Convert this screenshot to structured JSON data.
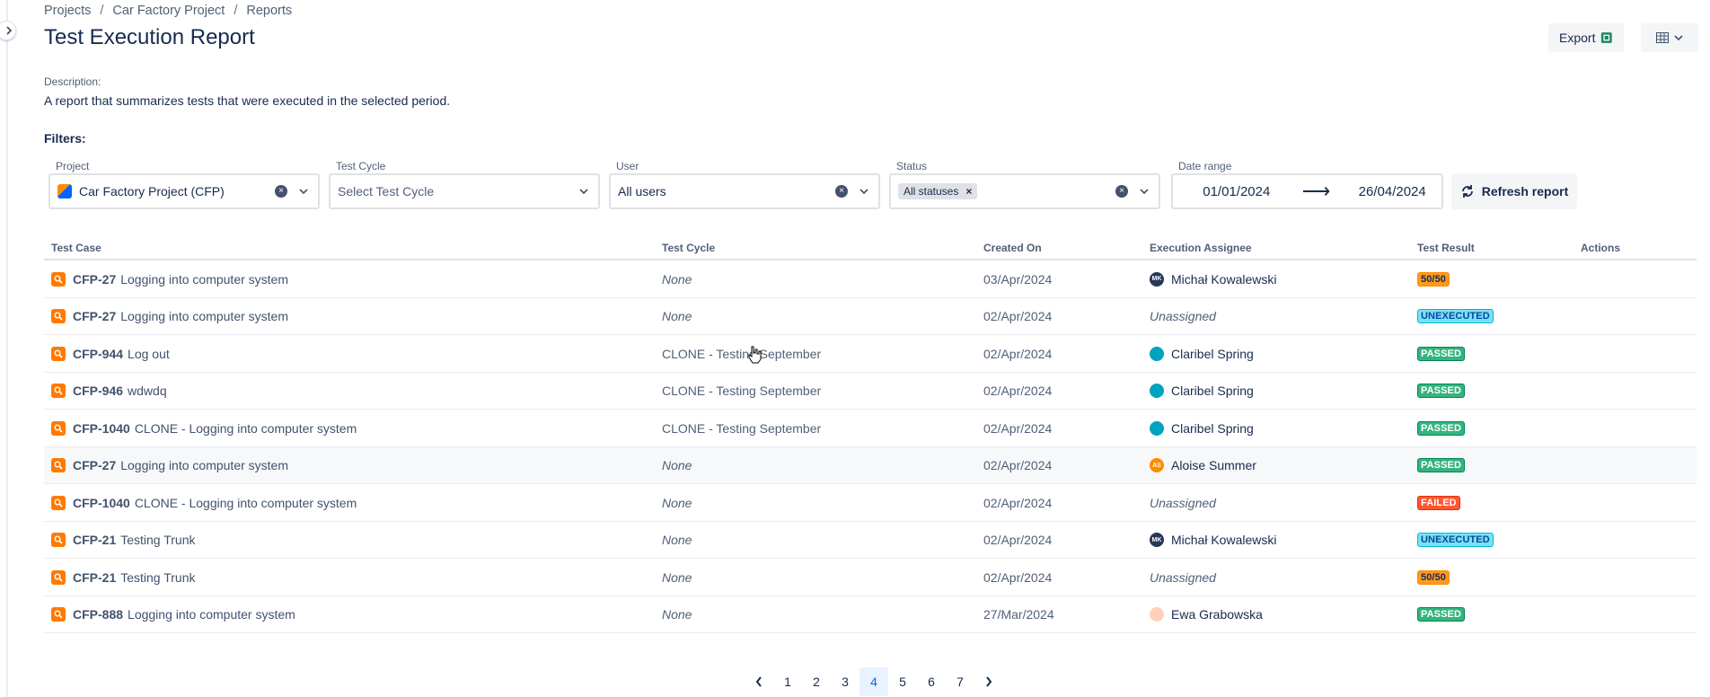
{
  "breadcrumb": [
    "Projects",
    "Car Factory Project",
    "Reports"
  ],
  "breadcrumb_sep": "/",
  "title": "Test Execution Report",
  "header": {
    "export_label": "Export"
  },
  "description": {
    "label": "Description:",
    "text": "A report that summarizes tests that were executed in the selected period."
  },
  "filters": {
    "label": "Filters:",
    "project": {
      "label": "Project",
      "value": "Car Factory Project (CFP)"
    },
    "test_cycle": {
      "label": "Test Cycle",
      "placeholder": "Select Test Cycle"
    },
    "user": {
      "label": "User",
      "value": "All users"
    },
    "status": {
      "label": "Status",
      "chip": "All statuses"
    },
    "date_range": {
      "label": "Date range",
      "from": "01/01/2024",
      "arrow": "⟶",
      "to": "26/04/2024"
    },
    "refresh_label": "Refresh report"
  },
  "table": {
    "headers": [
      "Test Case",
      "Test Cycle",
      "Created On",
      "Execution Assignee",
      "Test Result",
      "Actions"
    ],
    "rows": [
      {
        "key": "CFP-27",
        "name": "Logging into computer system",
        "cycle": "None",
        "created": "03/Apr/2024",
        "assignee": "Michał Kowalewski",
        "initials": "MK",
        "result": "50/50"
      },
      {
        "key": "CFP-27",
        "name": "Logging into computer system",
        "cycle": "None",
        "created": "02/Apr/2024",
        "assignee": "Unassigned",
        "initials": "",
        "result": "UNEXECUTED"
      },
      {
        "key": "CFP-944",
        "name": "Log out",
        "cycle": "CLONE - Testing September",
        "created": "02/Apr/2024",
        "assignee": "Claribel Spring",
        "initials": "",
        "result": "PASSED"
      },
      {
        "key": "CFP-946",
        "name": "wdwdq",
        "cycle": "CLONE - Testing September",
        "created": "02/Apr/2024",
        "assignee": "Claribel Spring",
        "initials": "",
        "result": "PASSED"
      },
      {
        "key": "CFP-1040",
        "name": "CLONE - Logging into computer system",
        "cycle": "CLONE - Testing September",
        "created": "02/Apr/2024",
        "assignee": "Claribel Spring",
        "initials": "",
        "result": "PASSED"
      },
      {
        "key": "CFP-27",
        "name": "Logging into computer system",
        "cycle": "None",
        "created": "02/Apr/2024",
        "assignee": "Aloise Summer",
        "initials": "AS",
        "result": "PASSED"
      },
      {
        "key": "CFP-1040",
        "name": "CLONE - Logging into computer system",
        "cycle": "None",
        "created": "02/Apr/2024",
        "assignee": "Unassigned",
        "initials": "",
        "result": "FAILED"
      },
      {
        "key": "CFP-21",
        "name": "Testing Trunk",
        "cycle": "None",
        "created": "02/Apr/2024",
        "assignee": "Michał Kowalewski",
        "initials": "MK",
        "result": "UNEXECUTED"
      },
      {
        "key": "CFP-21",
        "name": "Testing Trunk",
        "cycle": "None",
        "created": "02/Apr/2024",
        "assignee": "Unassigned",
        "initials": "",
        "result": "50/50"
      },
      {
        "key": "CFP-888",
        "name": "Logging into computer system",
        "cycle": "None",
        "created": "27/Mar/2024",
        "assignee": "Ewa Grabowska",
        "initials": "",
        "result": "PASSED"
      }
    ]
  },
  "pagination": {
    "pages": [
      "1",
      "2",
      "3",
      "4",
      "5",
      "6",
      "7"
    ],
    "current": "4"
  }
}
